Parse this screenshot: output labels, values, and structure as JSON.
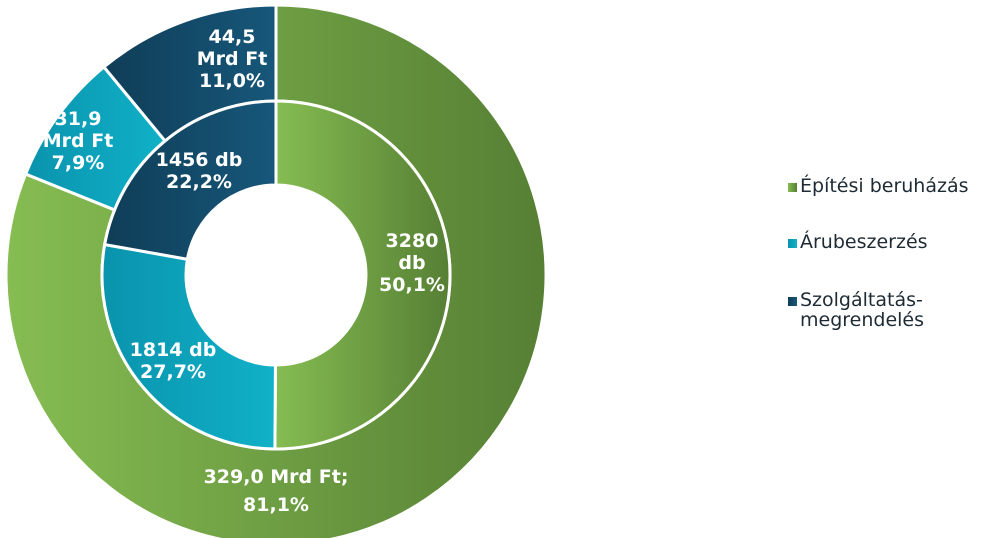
{
  "chart_data": {
    "type": "doughnut",
    "legend_position": "right",
    "categories": [
      "Építési beruházás",
      "Árubeszerzés",
      "Szolgáltatás-\nmegrendelés"
    ],
    "colors": [
      "#7ab24a",
      "#0aa1bb",
      "#124e6c"
    ],
    "series": [
      {
        "ring": "outer",
        "values": [
          81.1,
          7.9,
          11.0
        ],
        "labels": [
          [
            "329,0 Mrd Ft;",
            "81,1%"
          ],
          [
            "31,9",
            "Mrd Ft",
            "7,9%"
          ],
          [
            "44,5",
            "Mrd Ft",
            "11,0%"
          ]
        ]
      },
      {
        "ring": "inner",
        "values": [
          50.1,
          27.7,
          22.2
        ],
        "labels": [
          [
            "3280",
            "db",
            "50,1%"
          ],
          [
            "1814 db",
            "27,7%"
          ],
          [
            "1456 db",
            "22,2%"
          ]
        ]
      }
    ]
  }
}
